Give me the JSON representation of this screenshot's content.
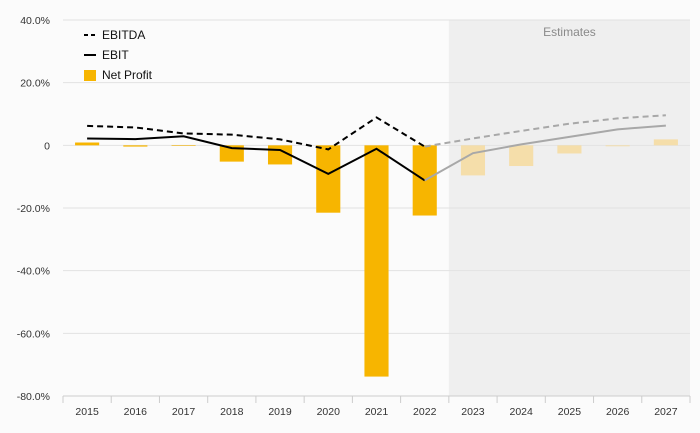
{
  "chart_data": {
    "type": "bar+line",
    "categories": [
      "2015",
      "2016",
      "2017",
      "2018",
      "2019",
      "2020",
      "2021",
      "2022",
      "2023",
      "2024",
      "2025",
      "2026",
      "2027"
    ],
    "estimates_label": "Estimates",
    "estimates_start_index": 8,
    "ylim": [
      -80,
      40
    ],
    "yticks": [
      40,
      20,
      0,
      -20,
      -40,
      -60,
      -80
    ],
    "ytick_labels": [
      "40.0%",
      "20.0%",
      "0",
      "-20.0%",
      "-40.0%",
      "-60.0%",
      "-80.0%"
    ],
    "grid": true,
    "legend_position": "top-left",
    "series": [
      {
        "name": "EBITDA",
        "kind": "line",
        "style": "dashed",
        "color": "#000000",
        "estimate_color": "#a8a8a8",
        "values": [
          6.2,
          5.7,
          3.8,
          3.4,
          1.9,
          -1.3,
          8.9,
          -0.4,
          2.2,
          4.6,
          6.9,
          8.6,
          9.6
        ]
      },
      {
        "name": "EBIT",
        "kind": "line",
        "style": "solid",
        "color": "#000000",
        "estimate_color": "#a8a8a8",
        "values": [
          2.2,
          2.0,
          2.9,
          -0.9,
          -1.5,
          -9.1,
          -1.1,
          -11.2,
          -2.5,
          0.3,
          2.7,
          5.1,
          6.3
        ]
      },
      {
        "name": "Net Profit",
        "kind": "bar",
        "color": "#f7b500",
        "estimate_color": "#f5deaa",
        "values": [
          0.9,
          -0.4,
          0.0,
          -5.2,
          -6.1,
          -21.5,
          -73.8,
          -22.4,
          -9.6,
          -6.6,
          -2.6,
          -0.3,
          1.9
        ]
      }
    ]
  }
}
